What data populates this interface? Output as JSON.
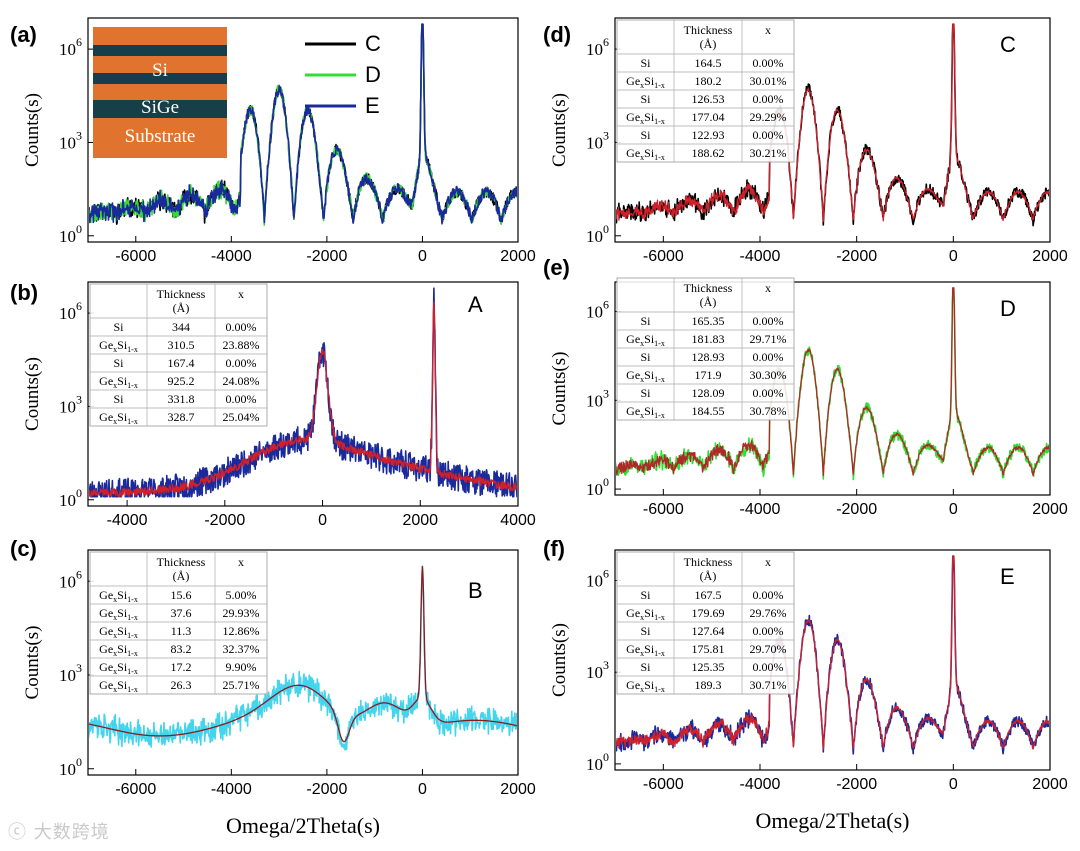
{
  "chart_data": [
    {
      "type": "line",
      "panel_label": "(a)",
      "xlim": [
        -7000,
        2000
      ],
      "xticks": [
        "-6000",
        "-4000",
        "-2000",
        "0",
        "2000"
      ],
      "xtick_values": [
        -6000,
        -4000,
        -2000,
        0,
        2000
      ],
      "ylabel": "Counts(s)",
      "yticks": [
        "10",
        "10",
        "10"
      ],
      "ytick_exponents": [
        "0",
        "3",
        "6"
      ],
      "series": [
        {
          "name": "C",
          "color": "#000000"
        },
        {
          "name": "D",
          "color": "#33dd33"
        },
        {
          "name": "E",
          "color": "#1a2a9a"
        }
      ],
      "inset": {
        "layers": [
          "Si",
          "SiGe",
          "Substrate"
        ],
        "colors": {
          "si": "#e0742e",
          "sige": "#173f4a"
        }
      },
      "sim": {
        "fringes": true,
        "sat_center": -3000,
        "sat_sigma": 1300,
        "fringe_period": 620,
        "noise": 0.18,
        "seed": 11
      }
    },
    {
      "type": "line",
      "panel_label": "(b)",
      "annotation": "A",
      "xlim": [
        -4800,
        4000
      ],
      "xticks": [
        "-4000",
        "-2000",
        "0",
        "2000",
        "4000"
      ],
      "xtick_values": [
        -4000,
        -2000,
        0,
        2000,
        4000
      ],
      "ylabel": "Counts(s)",
      "yticks": [
        "10",
        "10",
        "10"
      ],
      "ytick_exponents": [
        "0",
        "3",
        "6"
      ],
      "series": [
        {
          "name": "measured",
          "color": "#1a2a9a"
        },
        {
          "name": "fit",
          "color": "#d0202a"
        }
      ],
      "table": {
        "header": [
          "Thickness",
          "(Å)",
          "x"
        ],
        "rows": [
          {
            "layer": "Si",
            "sub": "",
            "thickness": "344",
            "x": "0.00%"
          },
          {
            "layer": "Ge",
            "sub": "x",
            "layer2": "Si",
            "sub2": "1-x",
            "thickness": "310.5",
            "x": "23.88%"
          },
          {
            "layer": "Si",
            "sub": "",
            "thickness": "167.4",
            "x": "0.00%"
          },
          {
            "layer": "Ge",
            "sub": "x",
            "layer2": "Si",
            "sub2": "1-x",
            "thickness": "925.2",
            "x": "24.08%"
          },
          {
            "layer": "Si",
            "sub": "",
            "thickness": "331.8",
            "x": "0.00%"
          },
          {
            "layer": "Ge",
            "sub": "x",
            "layer2": "Si",
            "sub2": "1-x",
            "thickness": "328.7",
            "x": "25.04%"
          }
        ]
      },
      "sim": {
        "peaks": [
          {
            "x": 0,
            "h": 2.9,
            "w": 160
          },
          {
            "x": 2280,
            "h": 5.5,
            "w": 40
          }
        ],
        "noise": 0.45,
        "base": 0.4,
        "seed": 23
      }
    },
    {
      "type": "line",
      "panel_label": "(c)",
      "annotation": "B",
      "xlim": [
        -7000,
        2000
      ],
      "xticks": [
        "-6000",
        "-4000",
        "-2000",
        "0",
        "2000"
      ],
      "xtick_values": [
        -6000,
        -4000,
        -2000,
        0,
        2000
      ],
      "ylabel": "Counts(s)",
      "xlabel": "Omega/2Theta(s)",
      "yticks": [
        "10",
        "10",
        "10"
      ],
      "ytick_exponents": [
        "0",
        "3",
        "6"
      ],
      "series": [
        {
          "name": "measured",
          "color": "#44d4ee"
        },
        {
          "name": "fit",
          "color": "#8a1a22"
        }
      ],
      "table": {
        "header": [
          "Thickness",
          "(Å)",
          "x"
        ],
        "rows": [
          {
            "layer": "Ge",
            "sub": "x",
            "layer2": "Si",
            "sub2": "1-x",
            "thickness": "15.6",
            "x": "5.00%"
          },
          {
            "layer": "Ge",
            "sub": "x",
            "layer2": "Si",
            "sub2": "1-x",
            "thickness": "37.6",
            "x": "29.93%"
          },
          {
            "layer": "Ge",
            "sub": "x",
            "layer2": "Si",
            "sub2": "1-x",
            "thickness": "11.3",
            "x": "12.86%"
          },
          {
            "layer": "Ge",
            "sub": "x",
            "layer2": "Si",
            "sub2": "1-x",
            "thickness": "83.2",
            "x": "32.37%"
          },
          {
            "layer": "Ge",
            "sub": "x",
            "layer2": "Si",
            "sub2": "1-x",
            "thickness": "17.2",
            "x": "9.90%"
          },
          {
            "layer": "Ge",
            "sub": "x",
            "layer2": "Si",
            "sub2": "1-x",
            "thickness": "26.3",
            "x": "25.71%"
          }
        ]
      },
      "sim": {
        "smooth": true,
        "noise": 0.22,
        "seed": 37
      }
    },
    {
      "type": "line",
      "panel_label": "(d)",
      "annotation": "C",
      "xlim": [
        -7000,
        2000
      ],
      "xticks": [
        "-6000",
        "-4000",
        "-2000",
        "0",
        "2000"
      ],
      "xtick_values": [
        -6000,
        -4000,
        -2000,
        0,
        2000
      ],
      "ylabel": "Counts(s)",
      "yticks": [
        "10",
        "10",
        "10"
      ],
      "ytick_exponents": [
        "0",
        "3",
        "6"
      ],
      "series": [
        {
          "name": "measured",
          "color": "#000000"
        },
        {
          "name": "fit",
          "color": "#d0202a"
        }
      ],
      "table": {
        "header": [
          "Thickness",
          "(Å)",
          "x"
        ],
        "rows": [
          {
            "layer": "Si",
            "sub": "",
            "thickness": "164.5",
            "x": "0.00%"
          },
          {
            "layer": "Ge",
            "sub": "x",
            "layer2": "Si",
            "sub2": "1-x",
            "thickness": "180.2",
            "x": "30.01%"
          },
          {
            "layer": "Si",
            "sub": "",
            "thickness": "126.53",
            "x": "0.00%"
          },
          {
            "layer": "Ge",
            "sub": "x",
            "layer2": "Si",
            "sub2": "1-x",
            "thickness": "177.04",
            "x": "29.29%"
          },
          {
            "layer": "Si",
            "sub": "",
            "thickness": "122.93",
            "x": "0.00%"
          },
          {
            "layer": "Ge",
            "sub": "x",
            "layer2": "Si",
            "sub2": "1-x",
            "thickness": "188.62",
            "x": "30.21%"
          }
        ]
      },
      "sim": {
        "fringes": true,
        "sat_center": -3000,
        "sat_sigma": 1300,
        "fringe_period": 620,
        "noise": 0.18,
        "seed": 41
      }
    },
    {
      "type": "line",
      "panel_label": "(e)",
      "annotation": "D",
      "xlim": [
        -7000,
        2000
      ],
      "xticks": [
        "-6000",
        "-4000",
        "-2000",
        "0",
        "2000"
      ],
      "xtick_values": [
        -6000,
        -4000,
        -2000,
        0,
        2000
      ],
      "ylabel": "Counts(s)",
      "yticks": [
        "10",
        "10",
        "10"
      ],
      "ytick_exponents": [
        "0",
        "3",
        "6"
      ],
      "series": [
        {
          "name": "measured",
          "color": "#33dd33"
        },
        {
          "name": "fit",
          "color": "#b0282a"
        }
      ],
      "table": {
        "header": [
          "Thickness",
          "(Å)",
          "x"
        ],
        "rows": [
          {
            "layer": "Si",
            "sub": "",
            "thickness": "165.35",
            "x": "0.00%"
          },
          {
            "layer": "Ge",
            "sub": "x",
            "layer2": "Si",
            "sub2": "1-x",
            "thickness": "181.83",
            "x": "29.71%"
          },
          {
            "layer": "Si",
            "sub": "",
            "thickness": "128.93",
            "x": "0.00%"
          },
          {
            "layer": "Ge",
            "sub": "x",
            "layer2": "Si",
            "sub2": "1-x",
            "thickness": "171.9",
            "x": "30.30%"
          },
          {
            "layer": "Si",
            "sub": "",
            "thickness": "128.09",
            "x": "0.00%"
          },
          {
            "layer": "Ge",
            "sub": "x",
            "layer2": "Si",
            "sub2": "1-x",
            "thickness": "184.55",
            "x": "30.78%"
          }
        ]
      },
      "sim": {
        "fringes": true,
        "sat_center": -3000,
        "sat_sigma": 1300,
        "fringe_period": 620,
        "noise": 0.18,
        "seed": 53
      }
    },
    {
      "type": "line",
      "panel_label": "(f)",
      "annotation": "E",
      "xlim": [
        -7000,
        2000
      ],
      "xticks": [
        "-6000",
        "-4000",
        "-2000",
        "0",
        "2000"
      ],
      "xtick_values": [
        -6000,
        -4000,
        -2000,
        0,
        2000
      ],
      "ylabel": "Counts(s)",
      "xlabel": "Omega/2Theta(s)",
      "yticks": [
        "10",
        "10",
        "10"
      ],
      "ytick_exponents": [
        "0",
        "3",
        "6"
      ],
      "series": [
        {
          "name": "measured",
          "color": "#1a2a9a"
        },
        {
          "name": "fit",
          "color": "#d0202a"
        }
      ],
      "table": {
        "header": [
          "Thickness",
          "(Å)",
          "x"
        ],
        "rows": [
          {
            "layer": "Si",
            "sub": "",
            "thickness": "167.5",
            "x": "0.00%"
          },
          {
            "layer": "Ge",
            "sub": "x",
            "layer2": "Si",
            "sub2": "1-x",
            "thickness": "179.69",
            "x": "29.76%"
          },
          {
            "layer": "Si",
            "sub": "",
            "thickness": "127.64",
            "x": "0.00%"
          },
          {
            "layer": "Ge",
            "sub": "x",
            "layer2": "Si",
            "sub2": "1-x",
            "thickness": "175.81",
            "x": "29.70%"
          },
          {
            "layer": "Si",
            "sub": "",
            "thickness": "125.35",
            "x": "0.00%"
          },
          {
            "layer": "Ge",
            "sub": "x",
            "layer2": "Si",
            "sub2": "1-x",
            "thickness": "189.3",
            "x": "30.71%"
          }
        ]
      },
      "sim": {
        "fringes": true,
        "sat_center": -3000,
        "sat_sigma": 1300,
        "fringe_period": 620,
        "noise": 0.18,
        "seed": 67
      }
    }
  ],
  "watermark": "大数跨境"
}
